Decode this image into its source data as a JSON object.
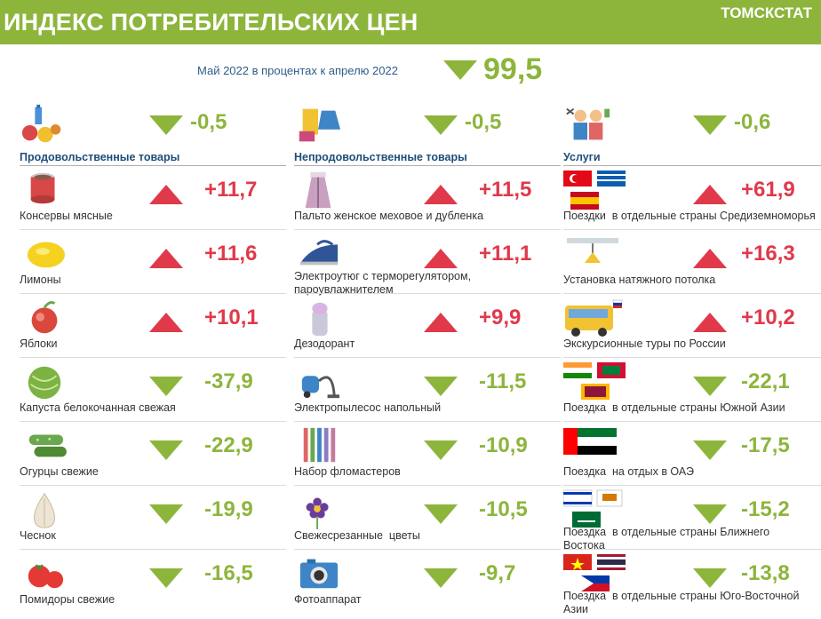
{
  "header": {
    "title": "ИНДЕКС ПОТРЕБИТЕЛЬСКИХ ЦЕН",
    "org": "ТОМСКСТАТ"
  },
  "summary": {
    "period": "Май 2022 в процентах к  апрелю 2022",
    "value": "99,5",
    "direction": "down"
  },
  "columns": [
    {
      "heading": {
        "label": "Продовольственные товары",
        "value": "-0,5",
        "direction": "down",
        "icon": "groceries-icon"
      },
      "items": [
        {
          "label": "Консервы мясные",
          "value": "+11,7",
          "direction": "up",
          "icon": "canned-meat-icon"
        },
        {
          "label": "Лимоны",
          "value": "+11,6",
          "direction": "up",
          "icon": "lemon-icon"
        },
        {
          "label": "Яблоки",
          "value": "+10,1",
          "direction": "up",
          "icon": "apple-icon"
        },
        {
          "label": "Капуста белокочанная свежая",
          "value": "-37,9",
          "direction": "down",
          "icon": "cabbage-icon"
        },
        {
          "label": "Огурцы свежие",
          "value": "-22,9",
          "direction": "down",
          "icon": "cucumber-icon"
        },
        {
          "label": "Чеснок",
          "value": "-19,9",
          "direction": "down",
          "icon": "garlic-icon"
        },
        {
          "label": "Помидоры свежие",
          "value": "-16,5",
          "direction": "down",
          "icon": "tomato-icon"
        }
      ]
    },
    {
      "heading": {
        "label": "Непродовольственные товары",
        "value": "-0,5",
        "direction": "down",
        "icon": "clothing-icon"
      },
      "items": [
        {
          "label": "Пальто женское меховое и дубленка",
          "value": "+11,5",
          "direction": "up",
          "icon": "fur-coat-icon"
        },
        {
          "label": "Электроутюг с терморегулятором,\nпароувлажнителем",
          "value": "+11,1",
          "direction": "up",
          "icon": "iron-icon"
        },
        {
          "label": "Дезодорант",
          "value": "+9,9",
          "direction": "up",
          "icon": "deodorant-icon"
        },
        {
          "label": "Электропылесос напольный",
          "value": "-11,5",
          "direction": "down",
          "icon": "vacuum-cleaner-icon"
        },
        {
          "label": "Набор фломастеров",
          "value": "-10,9",
          "direction": "down",
          "icon": "markers-icon"
        },
        {
          "label": "Свежесрезанные  цветы",
          "value": "-10,5",
          "direction": "down",
          "icon": "flower-icon"
        },
        {
          "label": "Фотоаппарат",
          "value": "-9,7",
          "direction": "down",
          "icon": "camera-icon"
        }
      ]
    },
    {
      "heading": {
        "label": "Услуги",
        "value": "-0,6",
        "direction": "down",
        "icon": "services-icon"
      },
      "items": [
        {
          "label": "Поездки  в отдельные страны Средиземноморья",
          "value": "+61,9",
          "direction": "up",
          "icon": "mediterranean-flags-icon"
        },
        {
          "label": "Установка натяжного потолка",
          "value": "+16,3",
          "direction": "up",
          "icon": "ceiling-lamp-icon"
        },
        {
          "label": "Экскурсионные туры по России",
          "value": "+10,2",
          "direction": "up",
          "icon": "tour-bus-icon"
        },
        {
          "label": "Поездка  в отдельные страны Южной Азии",
          "value": "-22,1",
          "direction": "down",
          "icon": "south-asia-flags-icon"
        },
        {
          "label": "Поездка  на отдых в ОАЭ",
          "value": "-17,5",
          "direction": "down",
          "icon": "uae-flag-icon"
        },
        {
          "label": "Поездка  в отдельные страны Ближнего\nВостока",
          "value": "-15,2",
          "direction": "down",
          "icon": "middle-east-flags-icon"
        },
        {
          "label": "Поездка  в отдельные страны Юго-Восточной\nАзии",
          "value": "-13,8",
          "direction": "down",
          "icon": "southeast-asia-flags-icon"
        }
      ]
    }
  ],
  "colors": {
    "accent_green": "#8db53c",
    "increase_red": "#e0394a",
    "heading_blue": "#1f4e79"
  }
}
